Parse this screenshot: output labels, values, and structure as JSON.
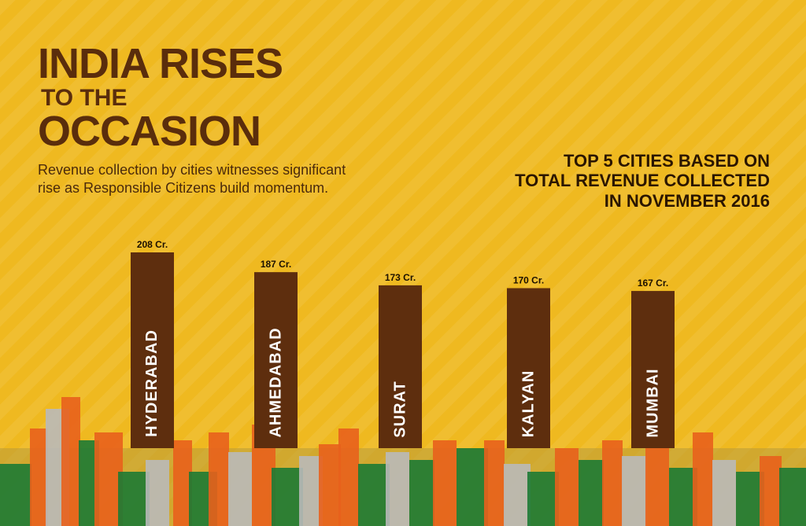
{
  "headline": {
    "line1": "INDIA RISES",
    "line2": "TO THE",
    "line3": "OCCASION"
  },
  "subtitle": "Revenue collection by cities witnesses significant rise as Responsible Citizens build momentum.",
  "chart_title": "TOP 5 CITIES BASED ON\nTOTAL REVENUE COLLECTED\nIN NOVEMBER 2016",
  "colors": {
    "background": "#efb920",
    "bar": "#5e2e0e",
    "headline": "#5a2d0c",
    "skyline_orange": "#e8601c",
    "skyline_green": "#1c7a34",
    "skyline_grey": "#b9b9b9"
  },
  "chart_data": {
    "type": "bar",
    "categories": [
      "HYDERABAD",
      "AHMEDABAD",
      "SURAT",
      "KALYAN",
      "MUMBAI"
    ],
    "values": [
      208,
      187,
      173,
      170,
      167
    ],
    "data_labels": [
      "208 Cr.",
      "187 Cr.",
      "173 Cr.",
      "170 Cr.",
      "167 Cr."
    ],
    "title": "TOP 5 CITIES BASED ON TOTAL REVENUE COLLECTED IN NOVEMBER 2016",
    "xlabel": "",
    "ylabel": "",
    "grid": false,
    "legend": "none"
  }
}
